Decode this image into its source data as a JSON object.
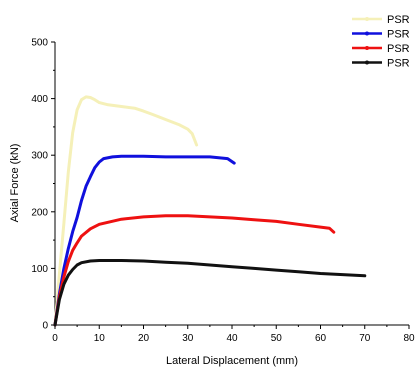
{
  "chart_data": {
    "type": "line",
    "title": "",
    "xlabel": "Lateral Displacement (mm)",
    "ylabel": "Axial Force (kN)",
    "xlim": [
      0,
      80
    ],
    "ylim": [
      0,
      500
    ],
    "xticks": [
      0,
      10,
      20,
      30,
      40,
      50,
      60,
      70,
      80
    ],
    "yticks": [
      0,
      100,
      200,
      300,
      400,
      500
    ],
    "grid": false,
    "legend_position": "top-right",
    "series": [
      {
        "name": "PSR",
        "color": "#f5f0b8",
        "points": [
          [
            0,
            0
          ],
          [
            1,
            90
          ],
          [
            2,
            180
          ],
          [
            3,
            270
          ],
          [
            4,
            340
          ],
          [
            5,
            380
          ],
          [
            6,
            398
          ],
          [
            7,
            403
          ],
          [
            8,
            402
          ],
          [
            9,
            398
          ],
          [
            10,
            393
          ],
          [
            12,
            389
          ],
          [
            15,
            386
          ],
          [
            18,
            383
          ],
          [
            20,
            378
          ],
          [
            22,
            372
          ],
          [
            25,
            363
          ],
          [
            28,
            354
          ],
          [
            30,
            346
          ],
          [
            31,
            338
          ],
          [
            32,
            318
          ]
        ]
      },
      {
        "name": "PSR",
        "color": "#1010dd",
        "points": [
          [
            0,
            0
          ],
          [
            1,
            55
          ],
          [
            2,
            100
          ],
          [
            3,
            135
          ],
          [
            4,
            165
          ],
          [
            5,
            190
          ],
          [
            6,
            220
          ],
          [
            7,
            245
          ],
          [
            8,
            262
          ],
          [
            9,
            278
          ],
          [
            10,
            288
          ],
          [
            11,
            294
          ],
          [
            13,
            297
          ],
          [
            15,
            298
          ],
          [
            20,
            298
          ],
          [
            25,
            297
          ],
          [
            30,
            297
          ],
          [
            35,
            297
          ],
          [
            39,
            294
          ],
          [
            40.5,
            286
          ]
        ]
      },
      {
        "name": "PSR",
        "color": "#ee1111",
        "points": [
          [
            0,
            0
          ],
          [
            1,
            50
          ],
          [
            2,
            85
          ],
          [
            3,
            112
          ],
          [
            4,
            132
          ],
          [
            5,
            145
          ],
          [
            6,
            157
          ],
          [
            8,
            170
          ],
          [
            10,
            178
          ],
          [
            15,
            187
          ],
          [
            20,
            191
          ],
          [
            25,
            193
          ],
          [
            30,
            193
          ],
          [
            35,
            191
          ],
          [
            40,
            189
          ],
          [
            45,
            186
          ],
          [
            50,
            183
          ],
          [
            55,
            178
          ],
          [
            60,
            173
          ],
          [
            62,
            171
          ],
          [
            63,
            164
          ]
        ]
      },
      {
        "name": "PSR",
        "color": "#111111",
        "points": [
          [
            0,
            0
          ],
          [
            1,
            45
          ],
          [
            2,
            72
          ],
          [
            3,
            88
          ],
          [
            4,
            98
          ],
          [
            5,
            106
          ],
          [
            6,
            110
          ],
          [
            8,
            113
          ],
          [
            10,
            114
          ],
          [
            15,
            114
          ],
          [
            20,
            113
          ],
          [
            25,
            111
          ],
          [
            30,
            109
          ],
          [
            35,
            106
          ],
          [
            40,
            103
          ],
          [
            45,
            100
          ],
          [
            50,
            97
          ],
          [
            55,
            94
          ],
          [
            60,
            91
          ],
          [
            65,
            89
          ],
          [
            70,
            87
          ]
        ]
      }
    ]
  }
}
